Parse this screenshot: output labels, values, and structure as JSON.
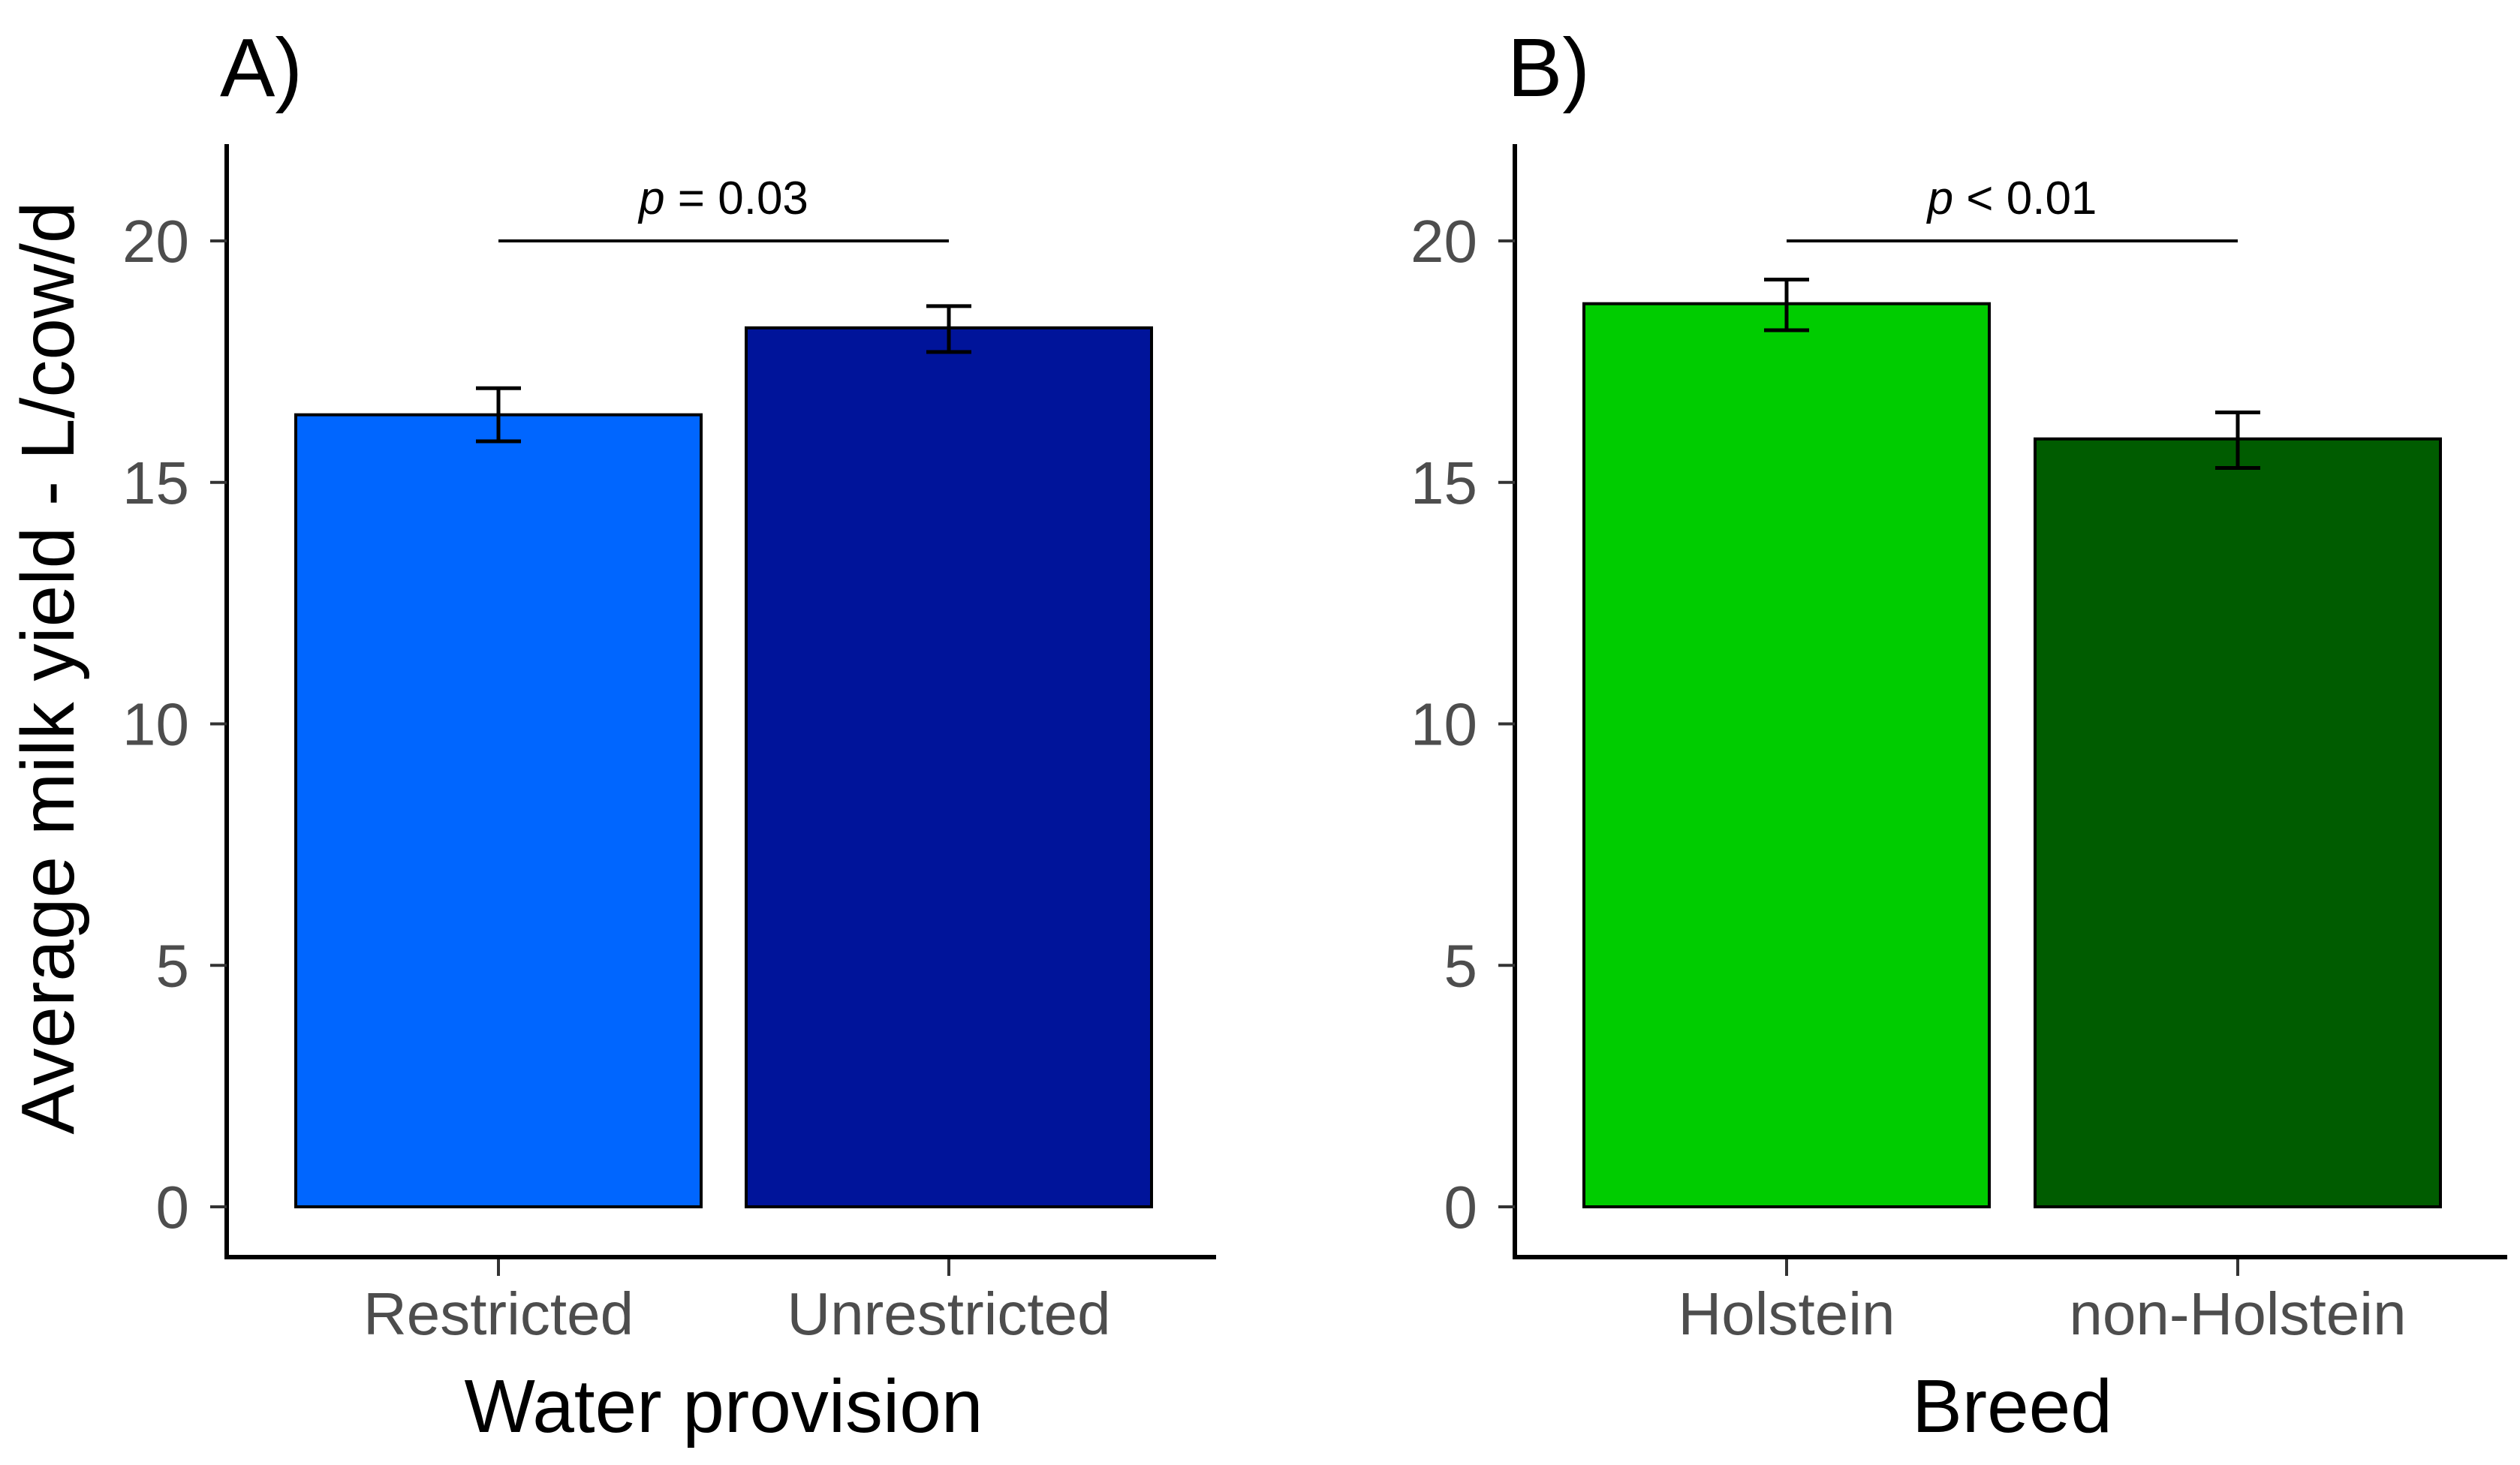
{
  "ylabel": "Average milk yield - L/cow/d",
  "chart_data": [
    {
      "type": "bar",
      "panel_label": "A)",
      "xlabel": "Water provision",
      "ylabel": "Average milk yield - L/cow/d",
      "categories": [
        "Restricted",
        "Unrestricted"
      ],
      "values": [
        16.4,
        18.2
      ],
      "error_low": [
        15.85,
        17.7
      ],
      "error_high": [
        16.95,
        18.65
      ],
      "colors": [
        "#0066ff",
        "#00149a"
      ],
      "ylim": [
        0,
        22
      ],
      "yticks": [
        "0",
        "5",
        "10",
        "15",
        "20"
      ],
      "annotation": {
        "symbol": "p",
        "rest": " = 0.03",
        "y": 20
      }
    },
    {
      "type": "bar",
      "panel_label": "B)",
      "xlabel": "Breed",
      "ylabel": "",
      "categories": [
        "Holstein",
        "non-Holstein"
      ],
      "values": [
        18.7,
        15.9
      ],
      "error_low": [
        18.15,
        15.3
      ],
      "error_high": [
        19.2,
        16.45
      ],
      "colors": [
        "#00cc00",
        "#005c00"
      ],
      "ylim": [
        0,
        22
      ],
      "yticks": [
        "0",
        "5",
        "10",
        "15",
        "20"
      ],
      "annotation": {
        "symbol": "p",
        "rest": " < 0.01",
        "y": 20
      }
    }
  ]
}
